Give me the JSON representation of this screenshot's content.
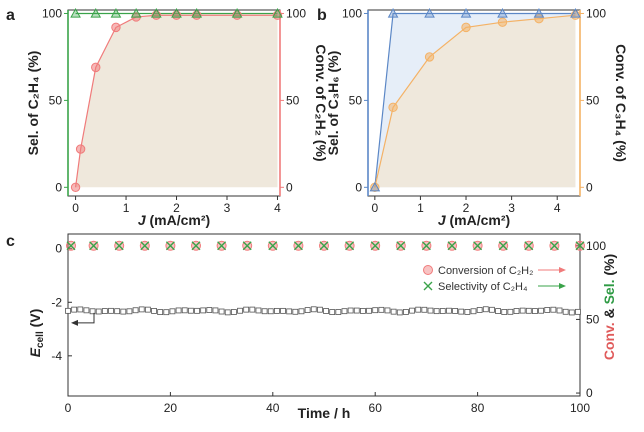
{
  "chart_data": [
    {
      "panel": "a",
      "type": "line",
      "xlabel_italic": "J",
      "xlabel_rest": " (mA/cm²)",
      "x_ticks": [
        0,
        1,
        2,
        3,
        4
      ],
      "xlim": [
        -0.15,
        4.05
      ],
      "ylabel_left": "Sel. of C₂H₄ (%)",
      "ylabel_right": "Conv. of C₂H₂ (%)",
      "y_ticks": [
        0,
        50,
        100
      ],
      "ylim": [
        -5,
        102
      ],
      "series": [
        {
          "role": "selectivity",
          "marker": "triangle",
          "color": "#3aa34a",
          "x": [
            0,
            0.4,
            0.8,
            1.2,
            1.6,
            2.0,
            2.4,
            3.2,
            4.0
          ],
          "y": [
            100,
            100,
            100,
            100,
            100,
            100,
            100,
            100,
            100
          ]
        },
        {
          "role": "conversion",
          "marker": "circle",
          "color": "#f07b7b",
          "x": [
            0,
            0.1,
            0.4,
            0.8,
            1.2,
            1.6,
            2.0,
            2.4,
            3.2,
            4.0
          ],
          "y": [
            0,
            22,
            69,
            92,
            98,
            99,
            99,
            99,
            99,
            99
          ]
        }
      ],
      "colors": {
        "left_axis": "#3aa34a",
        "right_axis": "#f07b7b",
        "fill": "#efe8dc"
      }
    },
    {
      "panel": "b",
      "type": "line",
      "xlabel_italic": "J",
      "xlabel_rest": " (mA/cm²)",
      "x_ticks": [
        0,
        1,
        2,
        3,
        4
      ],
      "xlim": [
        -0.15,
        4.5
      ],
      "ylabel_left": "Sel. of C₃H₆ (%)",
      "ylabel_right": "Conv. of C₃H₄ (%)",
      "y_ticks": [
        0,
        50,
        100
      ],
      "ylim": [
        -5,
        102
      ],
      "series": [
        {
          "role": "selectivity",
          "marker": "triangle",
          "color": "#5b87c6",
          "x": [
            0,
            0.4,
            1.2,
            2.0,
            2.8,
            3.6,
            4.4
          ],
          "y": [
            0,
            100,
            100,
            100,
            100,
            100,
            100
          ]
        },
        {
          "role": "conversion",
          "marker": "circle",
          "color": "#f4b266",
          "x": [
            0,
            0.4,
            1.2,
            2.0,
            2.8,
            3.6,
            4.4
          ],
          "y": [
            0,
            46,
            75,
            92,
            95,
            97,
            99
          ]
        }
      ],
      "colors": {
        "left_axis": "#5b87c6",
        "right_axis": "#f4b266",
        "fill": "#efe8dc",
        "fill_blue": "#e6eef8"
      }
    },
    {
      "panel": "c",
      "type": "scatter",
      "xlabel": "Time / h",
      "x_ticks": [
        0,
        20,
        40,
        60,
        80,
        100
      ],
      "xlim": [
        0,
        100
      ],
      "ylabel_left_main": "E",
      "ylabel_left_sub": "cell",
      "ylabel_left_rest": " (V)",
      "y_ticks_left": [
        0,
        -2,
        -4
      ],
      "ylim_left": [
        -5.5,
        0.55
      ],
      "ylabel_right_parts": [
        "Conv.",
        " & ",
        "Sel.",
        " (%)"
      ],
      "y_ticks_right": [
        0,
        50,
        100
      ],
      "ylim_right": [
        -2,
        108
      ],
      "legend": [
        "Conversion of C₂H₂",
        "Selectivity of C₂H₄"
      ],
      "conversion": {
        "x": [
          0,
          5,
          10,
          15,
          20,
          25,
          30,
          35,
          40,
          45,
          50,
          55,
          60,
          65,
          70,
          75,
          80,
          85,
          90,
          95,
          100
        ],
        "y": [
          100,
          100,
          100,
          100,
          100,
          100,
          100,
          100,
          100,
          100,
          100,
          100,
          100,
          100,
          100,
          100,
          100,
          100,
          100,
          100,
          100
        ]
      },
      "selectivity": {
        "x": [
          0,
          5,
          10,
          15,
          20,
          25,
          30,
          35,
          40,
          45,
          50,
          55,
          60,
          65,
          70,
          75,
          80,
          85,
          90,
          95,
          100
        ],
        "y": [
          100,
          100,
          100,
          100,
          100,
          100,
          100,
          100,
          100,
          100,
          100,
          100,
          100,
          100,
          100,
          100,
          100,
          100,
          100,
          100,
          100
        ]
      },
      "ecell": {
        "t_start": 0,
        "t_end": 100,
        "step": 1.2,
        "mean": -2.32,
        "min": -2.42,
        "max": -2.22
      },
      "colors": {
        "conversion": "#f07b7b",
        "selectivity": "#3aa34a",
        "ecell": "#555555",
        "conv_label": "#e05a5a",
        "sel_label": "#2e9a44"
      }
    }
  ],
  "panel_letters": [
    "a",
    "b",
    "c"
  ]
}
